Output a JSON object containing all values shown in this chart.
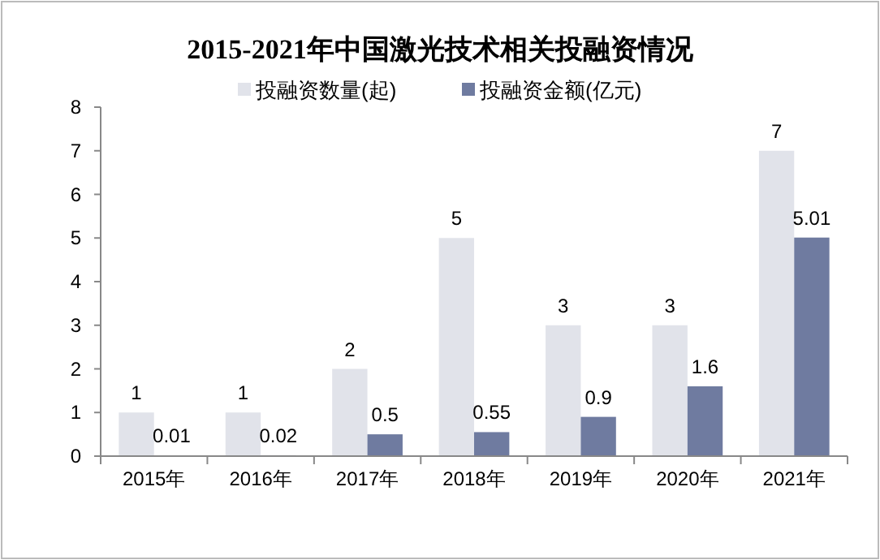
{
  "chart_data": {
    "type": "bar",
    "title": "2015-2021年中国激光技术相关投融资情况",
    "categories": [
      "2015年",
      "2016年",
      "2017年",
      "2018年",
      "2019年",
      "2020年",
      "2021年"
    ],
    "series": [
      {
        "name": "投融资数量(起)",
        "color": "#e1e3ea",
        "values": [
          1,
          1,
          2,
          5,
          3,
          3,
          7
        ]
      },
      {
        "name": "投融资金额(亿元)",
        "color": "#6f7ba0",
        "values": [
          0.01,
          0.02,
          0.5,
          0.55,
          0.9,
          1.6,
          5.01
        ]
      }
    ],
    "ylim": [
      0,
      8
    ],
    "yticks": [
      0,
      1,
      2,
      3,
      4,
      5,
      6,
      7,
      8
    ],
    "data_labels": true,
    "legend": "top",
    "grid": false
  }
}
